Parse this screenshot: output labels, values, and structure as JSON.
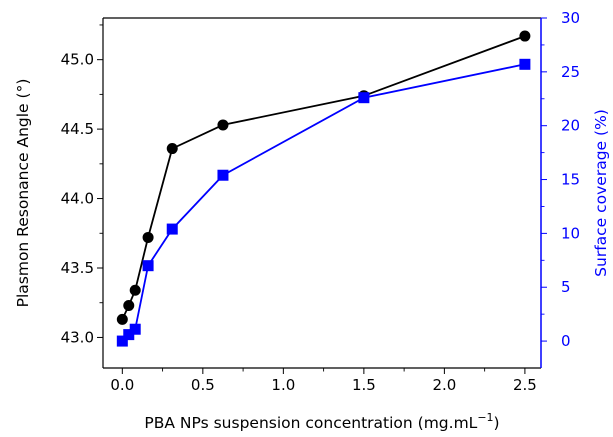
{
  "chart_data": {
    "type": "line",
    "xlabel": "PBA NPs suspension concentration (mg.mL",
    "xlabel_sup": "−1",
    "xlabel_end": ")",
    "ylabel_left": "Plasmon Resonance Angle (°)",
    "ylabel_right": "Surface coverage (%)",
    "xlim": [
      -0.12,
      2.6
    ],
    "ylim_left": [
      42.78,
      45.3
    ],
    "ylim_right": [
      -2.5,
      30
    ],
    "x_ticks": [
      0.0,
      0.5,
      1.0,
      1.5,
      2.0,
      2.5
    ],
    "x_tick_labels": [
      "0.0",
      "0.5",
      "1.0",
      "1.5",
      "2.0",
      "2.5"
    ],
    "y_left_ticks": [
      43.0,
      43.5,
      44.0,
      44.5,
      45.0
    ],
    "y_left_tick_labels": [
      "43.0",
      "43.5",
      "44.0",
      "44.5",
      "45.0"
    ],
    "y_right_ticks": [
      0,
      5,
      10,
      15,
      20,
      25,
      30
    ],
    "y_right_tick_labels": [
      "0",
      "5",
      "10",
      "15",
      "20",
      "25",
      "30"
    ],
    "grid": false,
    "colors": {
      "left": "#000000",
      "right": "#0000ff"
    },
    "series": [
      {
        "axis": "left",
        "marker": "circle",
        "color": "#000000",
        "x": [
          0.0,
          0.04,
          0.08,
          0.16,
          0.31,
          0.625,
          1.5,
          2.5
        ],
        "values": [
          43.13,
          43.23,
          43.34,
          43.72,
          44.36,
          44.53,
          44.74,
          45.17
        ]
      },
      {
        "axis": "right",
        "marker": "square",
        "color": "#0000ff",
        "x": [
          0.0,
          0.04,
          0.08,
          0.16,
          0.31,
          0.625,
          1.5,
          2.5
        ],
        "values": [
          0.0,
          0.6,
          1.1,
          7.0,
          10.4,
          15.4,
          22.6,
          25.7
        ]
      }
    ]
  }
}
